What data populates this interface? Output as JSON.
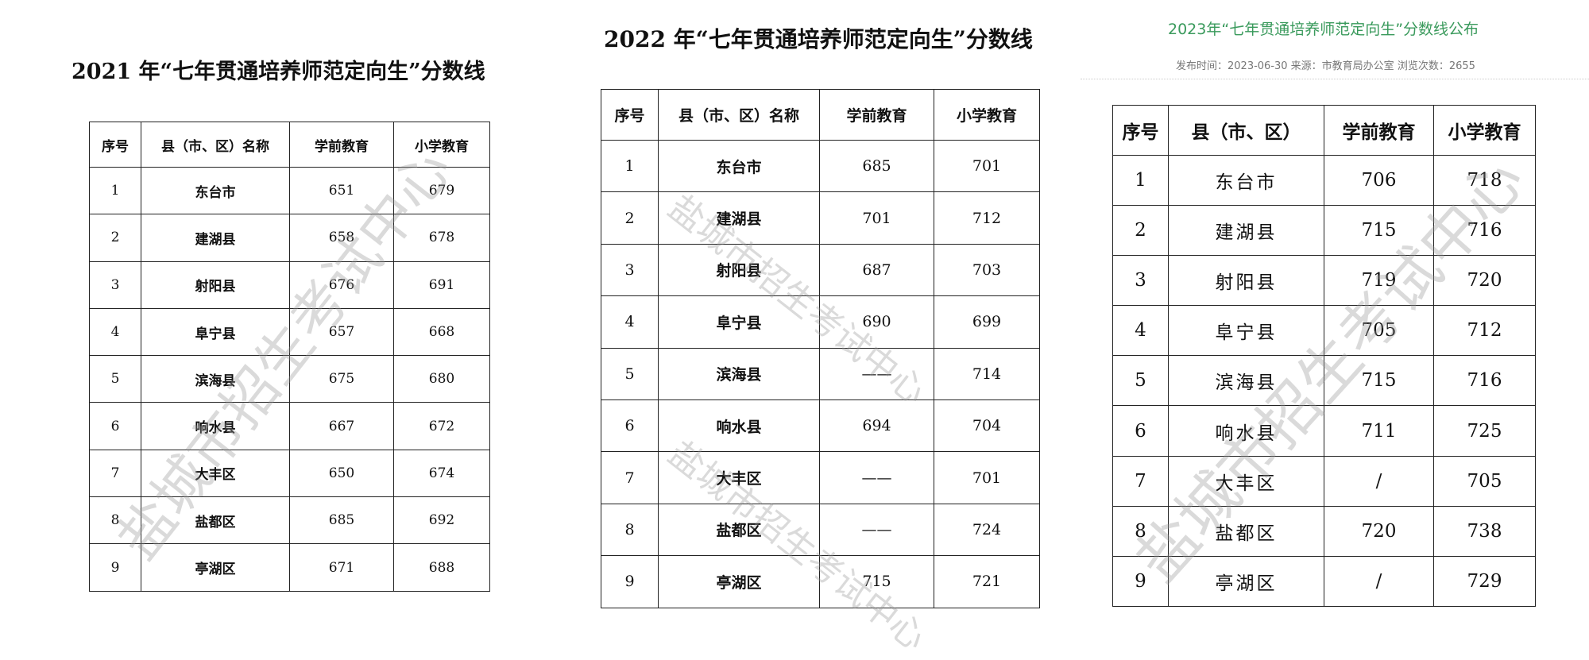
{
  "panels": [
    {
      "title": "2021 年“七年贯通培养师范定向生”分数线",
      "headers": [
        "序号",
        "县（市、区）名称",
        "学前教育",
        "小学教育"
      ],
      "rows": [
        [
          "1",
          "东台市",
          "651",
          "679"
        ],
        [
          "2",
          "建湖县",
          "658",
          "678"
        ],
        [
          "3",
          "射阳县",
          "676",
          "691"
        ],
        [
          "4",
          "阜宁县",
          "657",
          "668"
        ],
        [
          "5",
          "滨海县",
          "675",
          "680"
        ],
        [
          "6",
          "响水县",
          "667",
          "672"
        ],
        [
          "7",
          "大丰区",
          "650",
          "674"
        ],
        [
          "8",
          "盐都区",
          "685",
          "692"
        ],
        [
          "9",
          "亭湖区",
          "671",
          "688"
        ]
      ]
    },
    {
      "title": "2022 年“七年贯通培养师范定向生”分数线",
      "headers": [
        "序号",
        "县（市、区）名称",
        "学前教育",
        "小学教育"
      ],
      "rows": [
        [
          "1",
          "东台市",
          "685",
          "701"
        ],
        [
          "2",
          "建湖县",
          "701",
          "712"
        ],
        [
          "3",
          "射阳县",
          "687",
          "703"
        ],
        [
          "4",
          "阜宁县",
          "690",
          "699"
        ],
        [
          "5",
          "滨海县",
          "——",
          "714"
        ],
        [
          "6",
          "响水县",
          "694",
          "704"
        ],
        [
          "7",
          "大丰区",
          "——",
          "701"
        ],
        [
          "8",
          "盐都区",
          "——",
          "724"
        ],
        [
          "9",
          "亭湖区",
          "715",
          "721"
        ]
      ]
    },
    {
      "title": "2023年“七年贯通培养师范定向生”分数线公布",
      "meta": "发布时间：2023-06-30 来源：市教育局办公室 浏览次数：2655",
      "title_color": "#3a9a5c",
      "headers": [
        "序号",
        "县（市、区）",
        "学前教育",
        "小学教育"
      ],
      "rows": [
        [
          "1",
          "东台市",
          "706",
          "718"
        ],
        [
          "2",
          "建湖县",
          "715",
          "716"
        ],
        [
          "3",
          "射阳县",
          "719",
          "720"
        ],
        [
          "4",
          "阜宁县",
          "705",
          "712"
        ],
        [
          "5",
          "滨海县",
          "715",
          "716"
        ],
        [
          "6",
          "响水县",
          "711",
          "725"
        ],
        [
          "7",
          "大丰区",
          "/",
          "705"
        ],
        [
          "8",
          "盐都区",
          "720",
          "738"
        ],
        [
          "9",
          "亭湖区",
          "/",
          "729"
        ]
      ]
    }
  ],
  "watermark": "盐城市招生考试中心"
}
